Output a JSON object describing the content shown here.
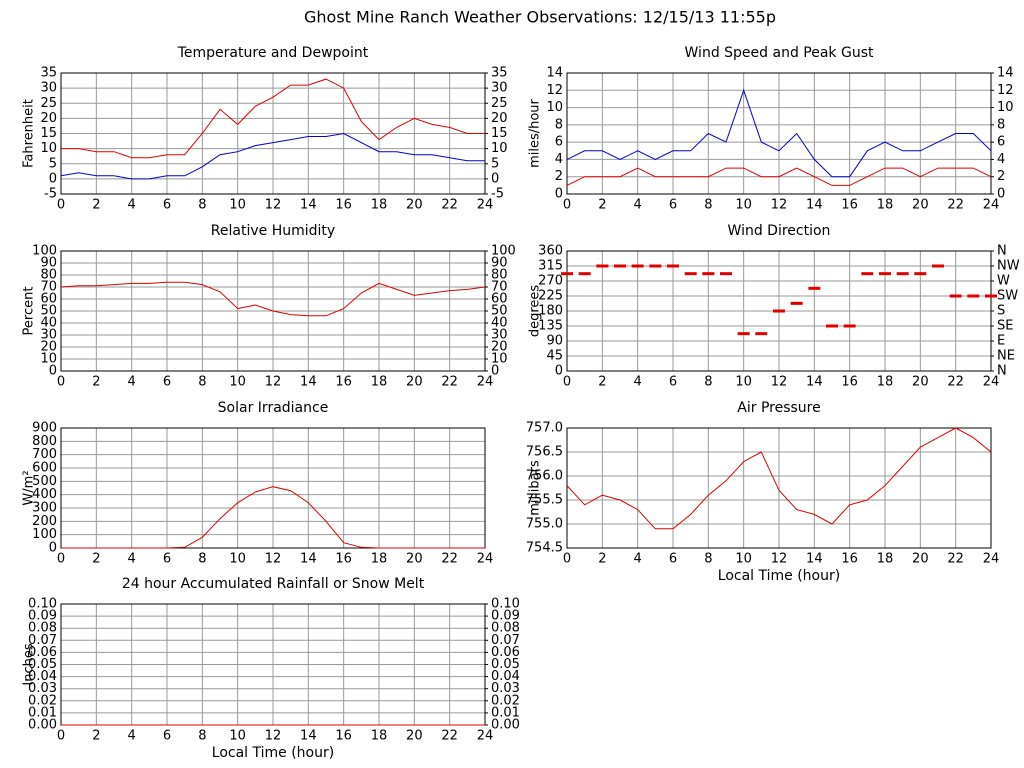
{
  "title": "Ghost Mine Ranch Weather Observations: 12/15/13 11:55p",
  "chart_data": [
    {
      "type": "line",
      "title": "Temperature and Dewpoint",
      "ylabel": "Fahrenheit",
      "x": [
        0,
        1,
        2,
        3,
        4,
        5,
        6,
        7,
        8,
        9,
        10,
        11,
        12,
        13,
        14,
        15,
        16,
        17,
        18,
        19,
        20,
        21,
        22,
        23,
        24
      ],
      "series": [
        {
          "name": "Temperature",
          "color": "#e00000",
          "values": [
            10,
            10,
            9,
            9,
            7,
            7,
            8,
            8,
            15,
            23,
            18,
            24,
            27,
            31,
            31,
            33,
            30,
            19,
            13,
            17,
            20,
            18,
            17,
            15,
            15
          ]
        },
        {
          "name": "Dewpoint",
          "color": "#0000d0",
          "values": [
            1,
            2,
            1,
            1,
            0,
            0,
            1,
            1,
            4,
            8,
            9,
            11,
            12,
            13,
            14,
            14,
            15,
            12,
            9,
            9,
            8,
            8,
            7,
            6,
            6
          ]
        }
      ],
      "xlim": [
        0,
        24
      ],
      "xticks": [
        0,
        2,
        4,
        6,
        8,
        10,
        12,
        14,
        16,
        18,
        20,
        22,
        24
      ],
      "ylim": [
        -5,
        35
      ],
      "yticks": [
        -5,
        0,
        5,
        10,
        15,
        20,
        25,
        30,
        35
      ],
      "y2ticks": [
        -5,
        0,
        5,
        10,
        15,
        20,
        25,
        30,
        35
      ],
      "grid": true
    },
    {
      "type": "line",
      "title": "Wind Speed and Peak Gust",
      "ylabel": "miles/hour",
      "x": [
        0,
        1,
        2,
        3,
        4,
        5,
        6,
        7,
        8,
        9,
        10,
        11,
        12,
        13,
        14,
        15,
        16,
        17,
        18,
        19,
        20,
        21,
        22,
        23,
        24
      ],
      "series": [
        {
          "name": "Peak Gust",
          "color": "#0000d0",
          "values": [
            4,
            5,
            5,
            4,
            5,
            4,
            5,
            5,
            7,
            6,
            12,
            6,
            5,
            7,
            4,
            2,
            2,
            5,
            6,
            5,
            5,
            6,
            7,
            7,
            5
          ]
        },
        {
          "name": "Wind Speed",
          "color": "#e00000",
          "values": [
            1,
            2,
            2,
            2,
            3,
            2,
            2,
            2,
            2,
            3,
            3,
            2,
            2,
            3,
            2,
            1,
            1,
            2,
            3,
            3,
            2,
            3,
            3,
            3,
            2
          ]
        }
      ],
      "xlim": [
        0,
        24
      ],
      "xticks": [
        0,
        2,
        4,
        6,
        8,
        10,
        12,
        14,
        16,
        18,
        20,
        22,
        24
      ],
      "ylim": [
        0,
        14
      ],
      "yticks": [
        0,
        2,
        4,
        6,
        8,
        10,
        12,
        14
      ],
      "y2ticks": [
        0,
        2,
        4,
        6,
        8,
        10,
        12,
        14
      ],
      "grid": true
    },
    {
      "type": "line",
      "title": "Relative Humidity",
      "ylabel": "Percent",
      "x": [
        0,
        1,
        2,
        3,
        4,
        5,
        6,
        7,
        8,
        9,
        10,
        11,
        12,
        13,
        14,
        15,
        16,
        17,
        18,
        19,
        20,
        21,
        22,
        23,
        24
      ],
      "series": [
        {
          "name": "Relative Humidity",
          "color": "#e00000",
          "values": [
            70,
            71,
            71,
            72,
            73,
            73,
            74,
            74,
            72,
            66,
            52,
            55,
            50,
            47,
            46,
            46,
            52,
            65,
            73,
            68,
            63,
            65,
            67,
            68,
            70
          ]
        }
      ],
      "xlim": [
        0,
        24
      ],
      "xticks": [
        0,
        2,
        4,
        6,
        8,
        10,
        12,
        14,
        16,
        18,
        20,
        22,
        24
      ],
      "ylim": [
        0,
        100
      ],
      "yticks": [
        0,
        10,
        20,
        30,
        40,
        50,
        60,
        70,
        80,
        90,
        100
      ],
      "y2ticks": [
        0,
        10,
        20,
        30,
        40,
        50,
        60,
        70,
        80,
        90,
        100
      ],
      "grid": true
    },
    {
      "type": "scatter",
      "title": "Wind Direction",
      "ylabel": "degrees",
      "x": [
        0,
        1,
        2,
        3,
        4,
        5,
        6,
        7,
        8,
        9,
        10,
        11,
        12,
        13,
        14,
        15,
        16,
        17,
        18,
        19,
        20,
        21,
        22,
        23,
        24
      ],
      "series": [
        {
          "name": "Wind Direction",
          "color": "#e00000",
          "values": [
            292,
            292,
            315,
            315,
            315,
            315,
            315,
            292,
            292,
            292,
            112,
            112,
            180,
            203,
            248,
            135,
            135,
            292,
            292,
            292,
            292,
            315,
            225,
            225,
            225
          ]
        }
      ],
      "xlim": [
        0,
        24
      ],
      "xticks": [
        0,
        2,
        4,
        6,
        8,
        10,
        12,
        14,
        16,
        18,
        20,
        22,
        24
      ],
      "ylim": [
        0,
        360
      ],
      "yticks": [
        0,
        45,
        90,
        135,
        180,
        225,
        270,
        315,
        360
      ],
      "y2ticks": [
        {
          "value": 0,
          "label": "N"
        },
        {
          "value": 45,
          "label": "NE"
        },
        {
          "value": 90,
          "label": "E"
        },
        {
          "value": 135,
          "label": "SE"
        },
        {
          "value": 180,
          "label": "S"
        },
        {
          "value": 225,
          "label": "SW"
        },
        {
          "value": 270,
          "label": "W"
        },
        {
          "value": 315,
          "label": "NW"
        },
        {
          "value": 360,
          "label": "N"
        }
      ],
      "grid": true
    },
    {
      "type": "line",
      "title": "Solar Irradiance",
      "ylabel": "W/m²",
      "x": [
        0,
        1,
        2,
        3,
        4,
        5,
        6,
        7,
        8,
        9,
        10,
        11,
        12,
        13,
        14,
        15,
        16,
        17,
        18,
        19,
        20,
        21,
        22,
        23,
        24
      ],
      "series": [
        {
          "name": "Solar Irradiance",
          "color": "#e00000",
          "values": [
            0,
            0,
            0,
            0,
            0,
            0,
            0,
            5,
            80,
            220,
            340,
            420,
            460,
            430,
            340,
            200,
            40,
            5,
            0,
            0,
            0,
            0,
            0,
            0,
            0
          ]
        }
      ],
      "xlim": [
        0,
        24
      ],
      "xticks": [
        0,
        2,
        4,
        6,
        8,
        10,
        12,
        14,
        16,
        18,
        20,
        22,
        24
      ],
      "ylim": [
        0,
        900
      ],
      "yticks": [
        0,
        100,
        200,
        300,
        400,
        500,
        600,
        700,
        800,
        900
      ],
      "grid": true
    },
    {
      "type": "line",
      "title": "Air Pressure",
      "ylabel": "millibars",
      "xlabel": "Local Time (hour)",
      "x": [
        0,
        1,
        2,
        3,
        4,
        5,
        6,
        7,
        8,
        9,
        10,
        11,
        12,
        13,
        14,
        15,
        16,
        17,
        18,
        19,
        20,
        21,
        22,
        23,
        24
      ],
      "series": [
        {
          "name": "Air Pressure",
          "color": "#e00000",
          "values": [
            755.8,
            755.4,
            755.6,
            755.5,
            755.3,
            754.9,
            754.9,
            755.2,
            755.6,
            755.9,
            756.3,
            756.5,
            755.7,
            755.3,
            755.2,
            755.0,
            755.4,
            755.5,
            755.8,
            756.2,
            756.6,
            756.8,
            757.0,
            756.8,
            756.5
          ]
        }
      ],
      "xlim": [
        0,
        24
      ],
      "xticks": [
        0,
        2,
        4,
        6,
        8,
        10,
        12,
        14,
        16,
        18,
        20,
        22,
        24
      ],
      "ylim": [
        754.5,
        757
      ],
      "yticks": [
        754.5,
        {
          "value": 755,
          "label": "755.0"
        },
        755.5,
        {
          "value": 756,
          "label": "756.0"
        },
        756.5,
        {
          "value": 757,
          "label": "757.0"
        }
      ],
      "grid": true
    },
    {
      "type": "line",
      "title": "24 hour Accumulated Rainfall or Snow Melt",
      "ylabel": "Inches",
      "xlabel": "Local Time (hour)",
      "x": [
        0,
        1,
        2,
        3,
        4,
        5,
        6,
        7,
        8,
        9,
        10,
        11,
        12,
        13,
        14,
        15,
        16,
        17,
        18,
        19,
        20,
        21,
        22,
        23,
        24
      ],
      "series": [
        {
          "name": "Rainfall",
          "color": "#e00000",
          "values": [
            0,
            0,
            0,
            0,
            0,
            0,
            0,
            0,
            0,
            0,
            0,
            0,
            0,
            0,
            0,
            0,
            0,
            0,
            0,
            0,
            0,
            0,
            0,
            0,
            0
          ]
        }
      ],
      "xlim": [
        0,
        24
      ],
      "xticks": [
        0,
        2,
        4,
        6,
        8,
        10,
        12,
        14,
        16,
        18,
        20,
        22,
        24
      ],
      "ylim": [
        0,
        0.1
      ],
      "yticks": [
        {
          "value": 0,
          "label": "0.00"
        },
        {
          "value": 0.01,
          "label": "0.01"
        },
        {
          "value": 0.02,
          "label": "0.02"
        },
        {
          "value": 0.03,
          "label": "0.03"
        },
        {
          "value": 0.04,
          "label": "0.04"
        },
        {
          "value": 0.05,
          "label": "0.05"
        },
        {
          "value": 0.06,
          "label": "0.06"
        },
        {
          "value": 0.07,
          "label": "0.07"
        },
        {
          "value": 0.08,
          "label": "0.08"
        },
        {
          "value": 0.09,
          "label": "0.09"
        },
        {
          "value": 0.1,
          "label": "0.10"
        }
      ],
      "y2ticks": [
        {
          "value": 0,
          "label": "0.00"
        },
        {
          "value": 0.01,
          "label": "0.01"
        },
        {
          "value": 0.02,
          "label": "0.02"
        },
        {
          "value": 0.03,
          "label": "0.03"
        },
        {
          "value": 0.04,
          "label": "0.04"
        },
        {
          "value": 0.05,
          "label": "0.05"
        },
        {
          "value": 0.06,
          "label": "0.06"
        },
        {
          "value": 0.07,
          "label": "0.07"
        },
        {
          "value": 0.08,
          "label": "0.08"
        },
        {
          "value": 0.09,
          "label": "0.09"
        },
        {
          "value": 0.1,
          "label": "0.10"
        }
      ],
      "grid": true
    }
  ]
}
